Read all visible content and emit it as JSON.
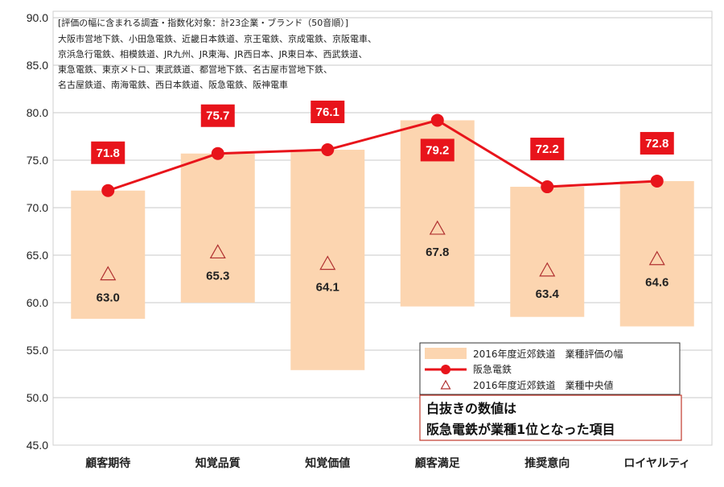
{
  "chart_data": {
    "type": "bar",
    "categories": [
      "顧客期待",
      "知覚品質",
      "知覚価値",
      "顧客満足",
      "推奨意向",
      "ロイヤルティ"
    ],
    "ylim": [
      45,
      90
    ],
    "y_ticks": [
      "45.0",
      "50.0",
      "55.0",
      "60.0",
      "65.0",
      "70.0",
      "75.0",
      "80.0",
      "85.0",
      "90.0"
    ],
    "range_low": [
      58.3,
      60.0,
      52.9,
      59.6,
      58.5,
      57.5
    ],
    "range_high": [
      71.8,
      75.7,
      76.1,
      79.2,
      72.2,
      72.8
    ],
    "series": [
      {
        "name": "阪急電鉄",
        "values": [
          71.8,
          75.7,
          76.1,
          79.2,
          72.2,
          72.8
        ],
        "labels": [
          "71.8",
          "75.7",
          "76.1",
          "79.2",
          "72.2",
          "72.8"
        ],
        "color": "#e8141b"
      },
      {
        "name": "2016年度近郊鉄道　業種中央値",
        "values": [
          63.0,
          65.3,
          64.1,
          67.8,
          63.4,
          64.6
        ],
        "labels": [
          "63.0",
          "65.3",
          "64.1",
          "67.8",
          "63.4",
          "64.6"
        ],
        "color": "#b03030"
      }
    ],
    "legend": {
      "range": "2016年度近郊鉄道　業種評価の幅",
      "line": "阪急電鉄",
      "median": "2016年度近郊鉄道　業種中央値",
      "placement": "bottom-right"
    },
    "note_lines": [
      "[評価の幅に含まれる調査・指数化対象：計23企業・ブランド（50音順）]",
      "大阪市営地下鉄、小田急電鉄、近畿日本鉄道、京王電鉄、京成電鉄、京阪電車、",
      "京浜急行電鉄、相模鉄道、JR九州、JR東海、JR西日本、JR東日本、西武鉄道、",
      "東急電鉄、東京メトロ、東武鉄道、都営地下鉄、名古屋市営地下鉄、",
      "名古屋鉄道、南海電鉄、西日本鉄道、阪急電鉄、阪神電車"
    ],
    "callout": [
      "白抜きの数値は",
      "阪急電鉄が業種1位となった項目"
    ],
    "colors": {
      "range_bar": "#fcd5b0",
      "line": "#e8141b",
      "label_box": "#e8141b",
      "callout_border": "#c0392b",
      "median_marker": "#b03030"
    },
    "grid": true
  }
}
